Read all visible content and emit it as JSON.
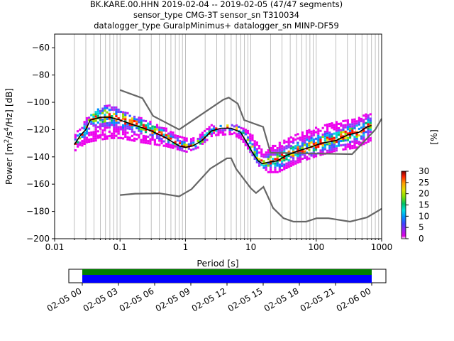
{
  "title_lines": [
    "BK.KARE.00.HHN   2019-02-04 -- 2019-02-05  (47/47 segments)",
    "sensor_type CMG-3T sensor_sn T310034",
    "datalogger_type GuralpMinimus+ datalogger_sn MINP-DF59"
  ],
  "chart_data": {
    "type": "heatmap",
    "x_scale": "log",
    "xlabel": "Period [s]",
    "ylabel_main": "Power [m",
    "ylabel_sup1": "2",
    "ylabel_mid": "/s",
    "ylabel_sup2": "4",
    "ylabel_end": "/Hz] [dB]",
    "xlim": [
      0.01,
      1000
    ],
    "ylim": [
      -200,
      -50
    ],
    "x_ticks": [
      0.01,
      0.1,
      1,
      10,
      100,
      1000
    ],
    "x_tick_labels": [
      "0.01",
      "0.1",
      "1",
      "10",
      "100",
      "1000"
    ],
    "y_ticks": [
      -200,
      -180,
      -160,
      -140,
      -120,
      -100,
      -80,
      -60
    ],
    "y_tick_labels": [
      "−200",
      "−180",
      "−160",
      "−140",
      "−120",
      "−100",
      "−80",
      "−60"
    ],
    "grid": "vertical period lines",
    "colorbar": {
      "label": "[%]",
      "range": [
        0,
        30
      ],
      "ticks": [
        0,
        5,
        10,
        15,
        20,
        25,
        30
      ],
      "tick_labels": [
        "0",
        "5",
        "10",
        "15",
        "20",
        "25",
        "30"
      ]
    },
    "noise_models": [
      {
        "name": "NHNM",
        "color": "#666666",
        "points": [
          [
            0.1,
            -91
          ],
          [
            0.22,
            -97
          ],
          [
            0.32,
            -110
          ],
          [
            0.8,
            -120
          ],
          [
            3.8,
            -98
          ],
          [
            4.6,
            -96.5
          ],
          [
            6.3,
            -101
          ],
          [
            7.9,
            -113
          ],
          [
            15.4,
            -118
          ],
          [
            20,
            -137
          ],
          [
            354,
            -138
          ],
          [
            800,
            -120
          ],
          [
            1000,
            -112
          ]
        ]
      },
      {
        "name": "NLNM",
        "color": "#666666",
        "points": [
          [
            0.1,
            -168
          ],
          [
            0.17,
            -167
          ],
          [
            0.4,
            -166.7
          ],
          [
            0.8,
            -169
          ],
          [
            1.24,
            -163.7
          ],
          [
            2.4,
            -148.6
          ],
          [
            4.3,
            -141.1
          ],
          [
            5,
            -141
          ],
          [
            6,
            -149
          ],
          [
            10,
            -163
          ],
          [
            12,
            -166.5
          ],
          [
            15.6,
            -162
          ],
          [
            21.9,
            -177.5
          ],
          [
            31.6,
            -185
          ],
          [
            45,
            -187.5
          ],
          [
            70,
            -187.5
          ],
          [
            101,
            -185
          ],
          [
            154,
            -185
          ],
          [
            328,
            -187.5
          ],
          [
            600,
            -184.4
          ],
          [
            1000,
            -178
          ]
        ]
      }
    ],
    "median": {
      "name": "median",
      "color": "#000000",
      "points": [
        [
          0.02,
          -131
        ],
        [
          0.025,
          -124
        ],
        [
          0.03,
          -120
        ],
        [
          0.035,
          -113
        ],
        [
          0.05,
          -111
        ],
        [
          0.07,
          -111
        ],
        [
          0.1,
          -113
        ],
        [
          0.15,
          -116
        ],
        [
          0.2,
          -118
        ],
        [
          0.3,
          -121
        ],
        [
          0.5,
          -126
        ],
        [
          0.8,
          -132
        ],
        [
          1.0,
          -133
        ],
        [
          1.3,
          -132
        ],
        [
          1.8,
          -128
        ],
        [
          2.5,
          -121
        ],
        [
          3.5,
          -119
        ],
        [
          5.0,
          -119
        ],
        [
          7.0,
          -122
        ],
        [
          9.0,
          -131
        ],
        [
          11,
          -138
        ],
        [
          13,
          -143
        ],
        [
          15,
          -145
        ],
        [
          18,
          -144
        ],
        [
          25,
          -143
        ],
        [
          35,
          -139
        ],
        [
          50,
          -136
        ],
        [
          80,
          -133
        ],
        [
          120,
          -130
        ],
        [
          200,
          -128
        ],
        [
          300,
          -124
        ],
        [
          450,
          -122
        ],
        [
          600,
          -118
        ],
        [
          700,
          -117
        ]
      ]
    },
    "density_band": {
      "description_points": [
        [
          0.02,
          -124,
          -136
        ],
        [
          0.03,
          -112,
          -130
        ],
        [
          0.05,
          -104,
          -128
        ],
        [
          0.07,
          -103,
          -127
        ],
        [
          0.1,
          -106,
          -127
        ],
        [
          0.2,
          -112,
          -130
        ],
        [
          0.5,
          -120,
          -133
        ],
        [
          1.0,
          -127,
          -137
        ],
        [
          1.5,
          -125,
          -134
        ],
        [
          2.5,
          -117,
          -125
        ],
        [
          5.0,
          -117,
          -124
        ],
        [
          7.0,
          -118,
          -128
        ],
        [
          10,
          -124,
          -139
        ],
        [
          15,
          -137,
          -152
        ],
        [
          25,
          -130,
          -152
        ],
        [
          50,
          -124,
          -145
        ],
        [
          100,
          -118,
          -140
        ],
        [
          200,
          -114,
          -136
        ],
        [
          400,
          -112,
          -134
        ],
        [
          700,
          -108,
          -128
        ]
      ]
    }
  },
  "timeline": {
    "ticks": [
      "02-05 00",
      "02-05 03",
      "02-05 06",
      "02-05 09",
      "02-05 12",
      "02-05 15",
      "02-05 18",
      "02-05 21",
      "02-06 00"
    ],
    "colors": {
      "top": "#008000",
      "bottom": "#0000ff"
    }
  }
}
